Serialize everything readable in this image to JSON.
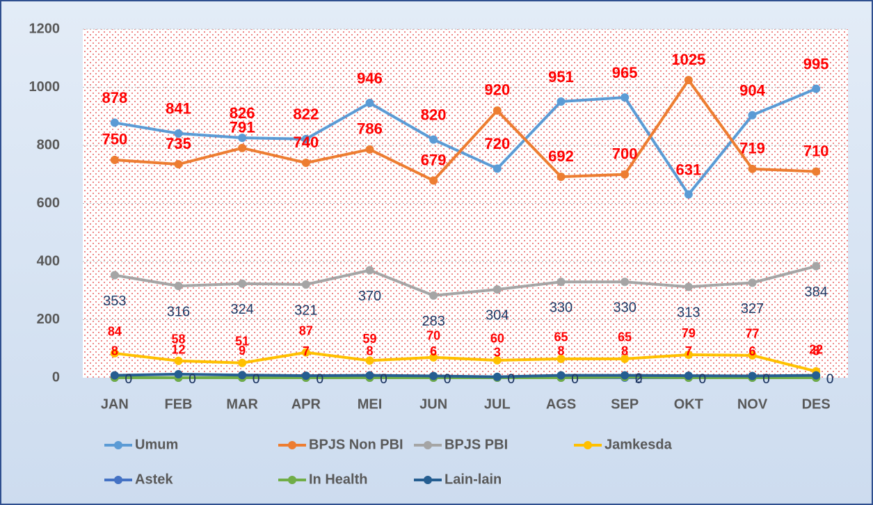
{
  "chart_data": {
    "type": "line",
    "categories": [
      "JAN",
      "FEB",
      "MAR",
      "APR",
      "MEI",
      "JUN",
      "JUL",
      "AGS",
      "SEP",
      "OKT",
      "NOV",
      "DES"
    ],
    "ylim": [
      0,
      1200
    ],
    "yticks": [
      0,
      200,
      400,
      600,
      800,
      1000,
      1200
    ],
    "grid": true,
    "legend": "bottom",
    "series": [
      {
        "name": "Umum",
        "color": "#5b9bd5",
        "values": [
          878,
          841,
          826,
          822,
          946,
          820,
          720,
          951,
          965,
          631,
          904,
          995
        ]
      },
      {
        "name": "BPJS Non PBI",
        "color": "#ed7d31",
        "values": [
          750,
          735,
          791,
          740,
          786,
          679,
          920,
          692,
          700,
          1025,
          719,
          710
        ]
      },
      {
        "name": "BPJS PBI",
        "color": "#a5a5a5",
        "values": [
          353,
          316,
          324,
          321,
          370,
          283,
          304,
          330,
          330,
          313,
          327,
          384
        ]
      },
      {
        "name": "Jamkesda",
        "color": "#ffc000",
        "values": [
          84,
          58,
          51,
          87,
          59,
          70,
          60,
          65,
          65,
          79,
          77,
          22
        ]
      },
      {
        "name": "Astek",
        "color": "#4472c4",
        "values": [
          0,
          0,
          0,
          0,
          0,
          0,
          0,
          0,
          0,
          0,
          0,
          0
        ]
      },
      {
        "name": "In Health",
        "color": "#70ad47",
        "values": [
          0,
          0,
          0,
          0,
          0,
          0,
          0,
          0,
          2,
          0,
          0,
          0
        ]
      },
      {
        "name": "Lain-lain",
        "color": "#255e91",
        "values": [
          8,
          12,
          9,
          7,
          8,
          6,
          3,
          8,
          8,
          7,
          6,
          8
        ]
      }
    ]
  }
}
